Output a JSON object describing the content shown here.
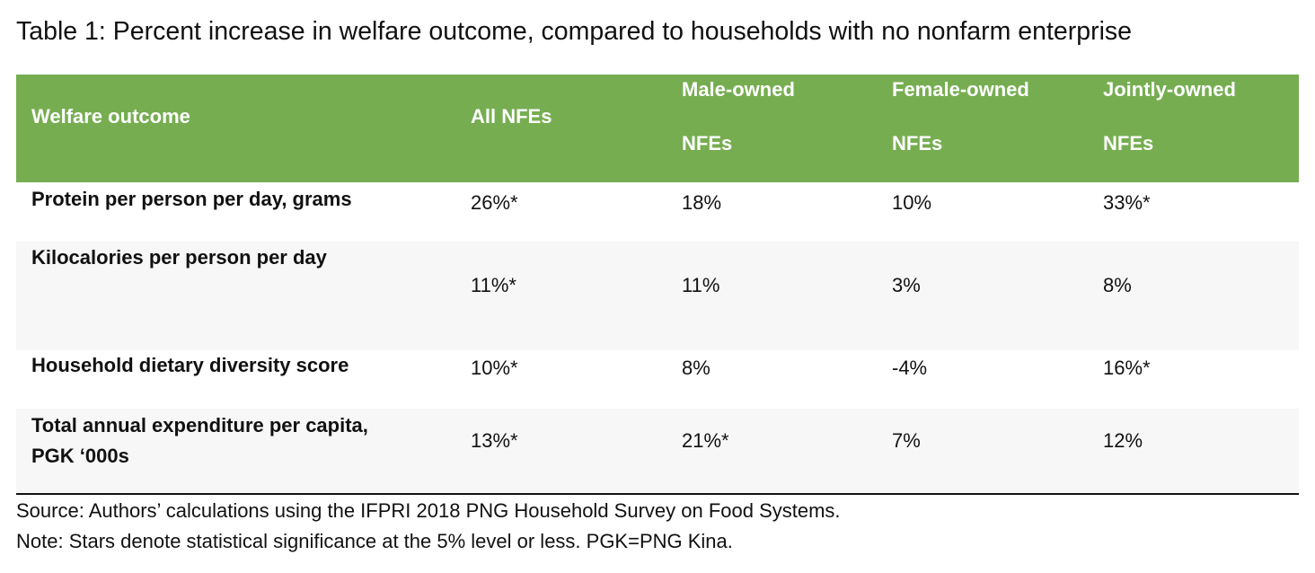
{
  "caption": "Table 1: Percent increase in welfare outcome, compared to households with no nonfarm enterprise",
  "header": {
    "col0": "Welfare outcome",
    "col1": "All NFEs",
    "col2": [
      "Male-owned",
      "NFEs"
    ],
    "col3": [
      "Female-owned",
      "NFEs"
    ],
    "col4": [
      "Jointly-owned",
      "NFEs"
    ]
  },
  "rows": [
    {
      "label": [
        "Protein per person per day, grams"
      ],
      "values": [
        "26%*",
        "18%",
        "10%",
        "33%*"
      ]
    },
    {
      "label": [
        "Kilocalories per person per day"
      ],
      "values": [
        "11%*",
        "11%",
        "3%",
        "8%"
      ]
    },
    {
      "label": [
        "Household dietary diversity score"
      ],
      "values": [
        "10%*",
        "8%",
        "-4%",
        "16%*"
      ]
    },
    {
      "label": [
        "Total annual expenditure per capita,",
        "PGK ‘000s"
      ],
      "values": [
        "13%*",
        "21%*",
        "7%",
        "12%"
      ]
    }
  ],
  "source": "Source: Authors’ calculations using the IFPRI 2018 PNG Household Survey on Food Systems.",
  "note": "Note: Stars denote statistical significance at the 5% level or less. PGK=PNG Kina."
}
